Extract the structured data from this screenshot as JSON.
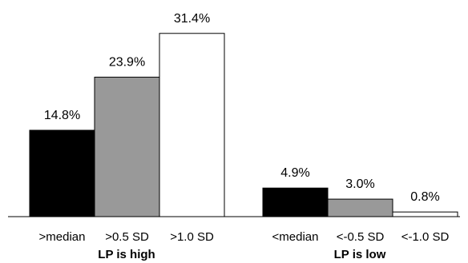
{
  "chart_data": {
    "type": "bar",
    "title": "",
    "xlabel": "",
    "ylabel": "",
    "ylim": [
      0,
      35
    ],
    "groups": [
      {
        "label": "LP is high",
        "categories": [
          ">median",
          ">0.5 SD",
          ">1.0 SD"
        ],
        "values": [
          14.8,
          23.9,
          31.4
        ],
        "value_labels": [
          "14.8%",
          "23.9%",
          "31.4%"
        ]
      },
      {
        "label": "LP is low",
        "categories": [
          "<median",
          "<-0.5 SD",
          "<-1.0 SD"
        ],
        "values": [
          4.9,
          3.0,
          0.8
        ],
        "value_labels": [
          "4.9%",
          "3.0%",
          "0.8%"
        ]
      }
    ],
    "bar_colors": [
      "#000000",
      "#999999",
      "#ffffff"
    ],
    "bar_outline": "#000000",
    "grid": false,
    "legend": "none"
  }
}
